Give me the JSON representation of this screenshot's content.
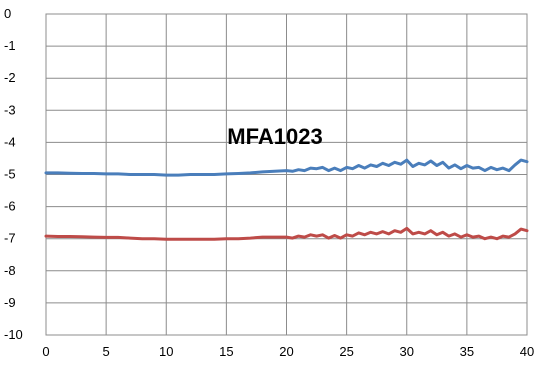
{
  "chart_data": {
    "type": "line",
    "title": "MFA1023",
    "xlabel": "",
    "ylabel": "",
    "xlim": [
      0,
      40
    ],
    "ylim": [
      -10,
      0
    ],
    "x_ticks": [
      0,
      5,
      10,
      15,
      20,
      25,
      30,
      35,
      40
    ],
    "x_tick_labels": [
      "0",
      "5",
      "10",
      "15",
      "20",
      "25",
      "30",
      "35",
      "40"
    ],
    "y_ticks": [
      0,
      -1,
      -2,
      -3,
      -4,
      -5,
      -6,
      -7,
      -8,
      -9,
      -10
    ],
    "y_tick_labels": [
      "0",
      "-1",
      "-2",
      "-3",
      "-4",
      "-5",
      "-6",
      "-7",
      "-8",
      "-9",
      "-10"
    ],
    "grid": true,
    "legend": "none",
    "series": [
      {
        "color": "#4a7ebb",
        "x": [
          0,
          1,
          2,
          3,
          4,
          5,
          6,
          7,
          8,
          9,
          10,
          11,
          12,
          13,
          14,
          15,
          16,
          17,
          18,
          19,
          20,
          20.5,
          21,
          21.5,
          22,
          22.5,
          23,
          23.5,
          24,
          24.5,
          25,
          25.5,
          26,
          26.5,
          27,
          27.5,
          28,
          28.5,
          29,
          29.5,
          30,
          30.5,
          31,
          31.5,
          32,
          32.5,
          33,
          33.5,
          34,
          34.5,
          35,
          35.5,
          36,
          36.5,
          37,
          37.5,
          38,
          38.5,
          39,
          39.5,
          40
        ],
        "y": [
          -4.95,
          -4.95,
          -4.96,
          -4.97,
          -4.97,
          -4.98,
          -4.98,
          -5.0,
          -5.0,
          -5.0,
          -5.02,
          -5.02,
          -5.0,
          -5.0,
          -5.0,
          -4.98,
          -4.97,
          -4.95,
          -4.92,
          -4.9,
          -4.88,
          -4.9,
          -4.85,
          -4.88,
          -4.8,
          -4.82,
          -4.78,
          -4.88,
          -4.8,
          -4.88,
          -4.78,
          -4.82,
          -4.72,
          -4.8,
          -4.7,
          -4.75,
          -4.65,
          -4.72,
          -4.62,
          -4.68,
          -4.55,
          -4.75,
          -4.65,
          -4.7,
          -4.58,
          -4.72,
          -4.62,
          -4.8,
          -4.7,
          -4.82,
          -4.72,
          -4.8,
          -4.78,
          -4.88,
          -4.78,
          -4.85,
          -4.8,
          -4.88,
          -4.7,
          -4.55,
          -4.6
        ]
      },
      {
        "color": "#be4b48",
        "x": [
          0,
          1,
          2,
          3,
          4,
          5,
          6,
          7,
          8,
          9,
          10,
          11,
          12,
          13,
          14,
          15,
          16,
          17,
          18,
          19,
          20,
          20.5,
          21,
          21.5,
          22,
          22.5,
          23,
          23.5,
          24,
          24.5,
          25,
          25.5,
          26,
          26.5,
          27,
          27.5,
          28,
          28.5,
          29,
          29.5,
          30,
          30.5,
          31,
          31.5,
          32,
          32.5,
          33,
          33.5,
          34,
          34.5,
          35,
          35.5,
          36,
          36.5,
          37,
          37.5,
          38,
          38.5,
          39,
          39.5,
          40
        ],
        "y": [
          -6.92,
          -6.93,
          -6.93,
          -6.94,
          -6.95,
          -6.96,
          -6.96,
          -6.98,
          -7.0,
          -7.0,
          -7.02,
          -7.02,
          -7.02,
          -7.02,
          -7.02,
          -7.0,
          -7.0,
          -6.98,
          -6.95,
          -6.95,
          -6.95,
          -6.98,
          -6.92,
          -6.95,
          -6.88,
          -6.92,
          -6.88,
          -6.98,
          -6.9,
          -6.98,
          -6.88,
          -6.92,
          -6.82,
          -6.88,
          -6.8,
          -6.85,
          -6.78,
          -6.85,
          -6.75,
          -6.8,
          -6.68,
          -6.85,
          -6.8,
          -6.85,
          -6.75,
          -6.88,
          -6.8,
          -6.92,
          -6.85,
          -6.95,
          -6.88,
          -6.95,
          -6.92,
          -7.0,
          -6.95,
          -7.0,
          -6.92,
          -6.95,
          -6.85,
          -6.7,
          -6.75
        ]
      }
    ]
  }
}
